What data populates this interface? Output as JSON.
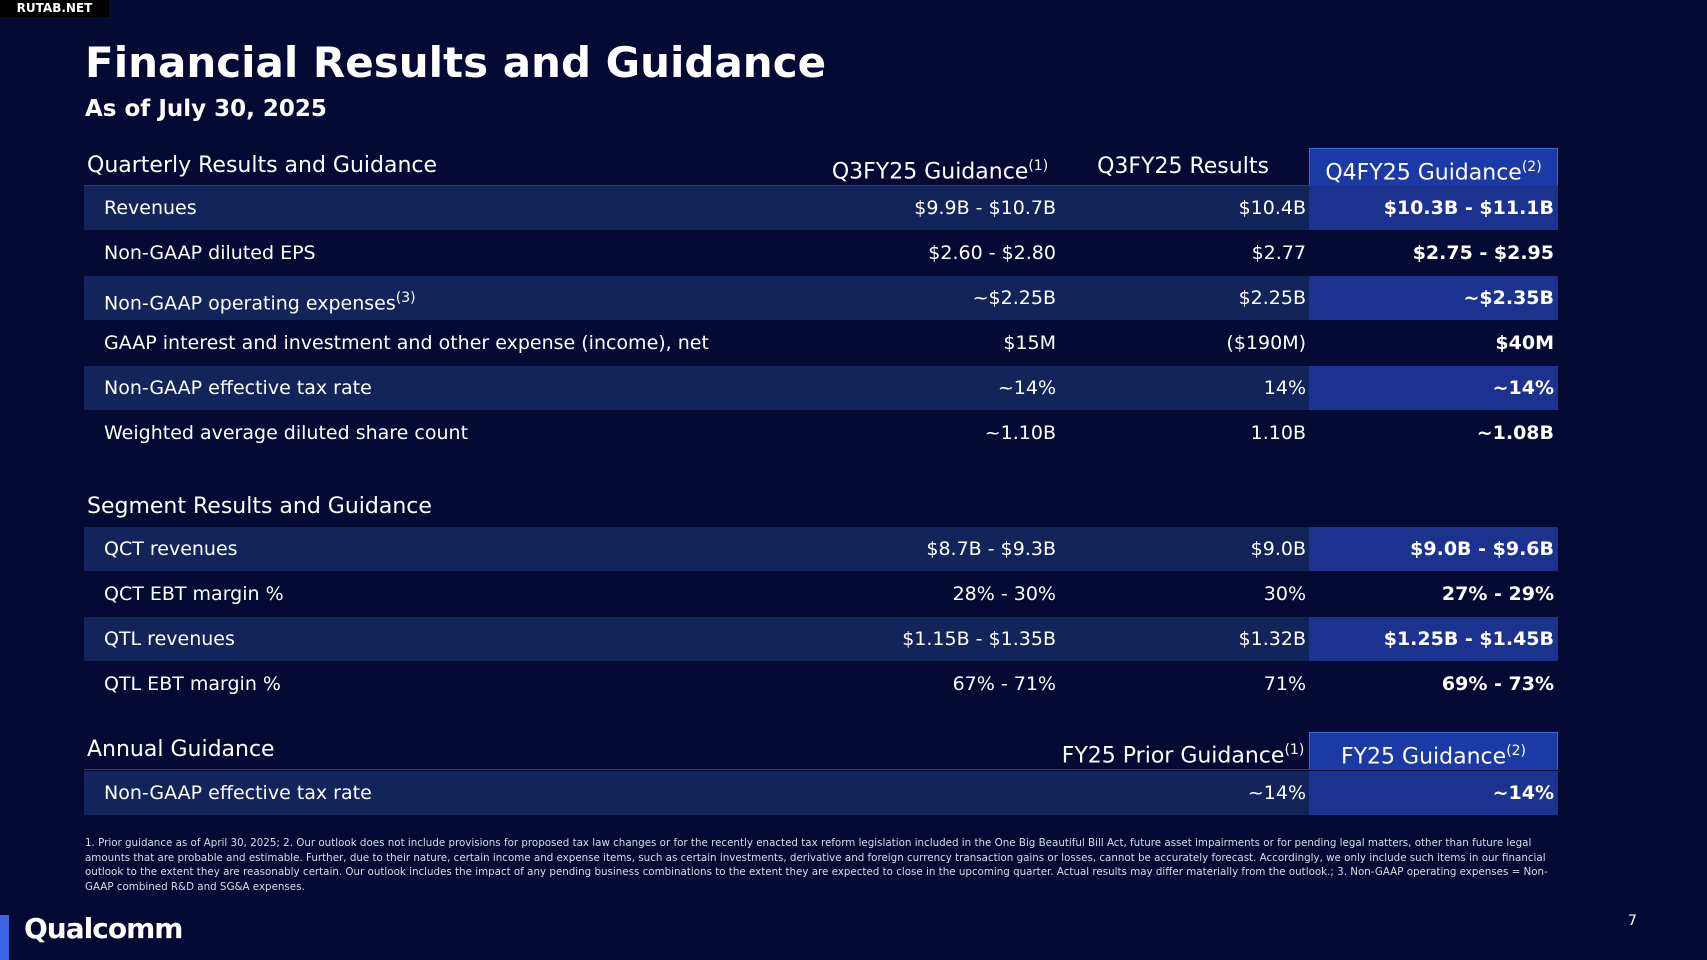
{
  "watermark": "RUTAB.NET",
  "header": {
    "title": "Financial Results and Guidance",
    "subtitle": "As of July 30, 2025"
  },
  "sections": [
    {
      "title": "Quarterly Results and Guidance",
      "columns": [
        {
          "text": "Q3FY25 Guidance",
          "sup": "(1)"
        },
        {
          "text": "Q3FY25 Results"
        },
        {
          "text": "Q4FY25 Guidance",
          "sup": "(2)"
        }
      ],
      "rows": [
        {
          "label": "Revenues",
          "values": [
            "$9.9B - $10.7B",
            "$10.4B",
            "$10.3B - $11.1B"
          ]
        },
        {
          "label": "Non-GAAP diluted EPS",
          "values": [
            "$2.60 - $2.80",
            "$2.77",
            "$2.75 - $2.95"
          ]
        },
        {
          "label": "Non-GAAP operating expenses",
          "sup": "(3)",
          "values": [
            "~$2.25B",
            "$2.25B",
            "~$2.35B"
          ]
        },
        {
          "label": "GAAP interest and investment and other expense (income), net",
          "values": [
            "$15M",
            "($190M)",
            "$40M"
          ]
        },
        {
          "label": "Non-GAAP effective tax rate",
          "values": [
            "~14%",
            "14%",
            "~14%"
          ]
        },
        {
          "label": "Weighted average diluted share count",
          "values": [
            "~1.10B",
            "1.10B",
            "~1.08B"
          ]
        }
      ]
    },
    {
      "title": "Segment Results and Guidance",
      "rows": [
        {
          "label": "QCT revenues",
          "values": [
            "$8.7B - $9.3B",
            "$9.0B",
            "$9.0B - $9.6B"
          ]
        },
        {
          "label": "QCT EBT margin %",
          "values": [
            "28% - 30%",
            "30%",
            "27% - 29%"
          ]
        },
        {
          "label": "QTL revenues",
          "values": [
            "$1.15B - $1.35B",
            "$1.32B",
            "$1.25B - $1.45B"
          ]
        },
        {
          "label": "QTL EBT margin %",
          "values": [
            "67% - 71%",
            "71%",
            "69% - 73%"
          ]
        }
      ]
    },
    {
      "title": "Annual Guidance",
      "columns": [
        {
          "text": "FY25 Prior Guidance",
          "sup": "(1)"
        },
        {
          "text": "FY25 Guidance",
          "sup": "(2)"
        }
      ],
      "rows": [
        {
          "label": "Non-GAAP effective tax rate",
          "values": [
            "~14%",
            "~14%"
          ]
        }
      ]
    }
  ],
  "footnote": "1. Prior guidance as of April 30, 2025; 2. Our outlook does not include provisions for proposed tax law changes or for the recently enacted tax reform legislation included in the One Big Beautiful Bill Act, future asset impairments or for pending legal matters, other than future legal amounts that are probable and estimable. Further, due to their nature, certain income and expense items, such as certain investments, derivative and foreign currency transaction gains or losses, cannot be accurately forecast. Accordingly, we only include such items in our financial outlook to the extent they are reasonably certain. Our outlook includes the impact of any pending business combinations to the extent they are expected to close in the upcoming quarter. Actual results may differ materially from the outlook.; 3. Non-GAAP operating expenses = Non-GAAP combined R&D and SG&A expenses.",
  "logo": "Qualcomm",
  "page_number": "7"
}
